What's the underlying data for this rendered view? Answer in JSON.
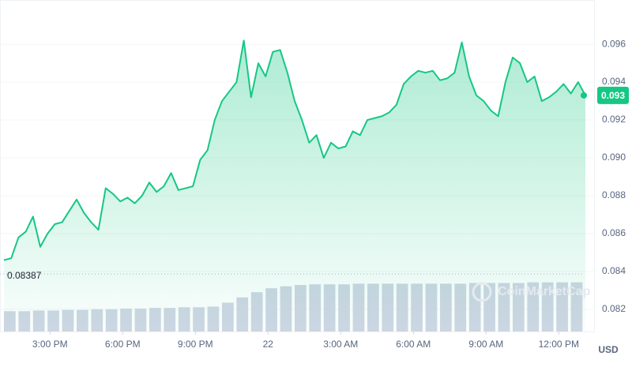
{
  "chart_data": {
    "type": "area",
    "x": [
      13.1,
      13.4,
      13.7,
      14.0,
      14.3,
      14.6,
      14.9,
      15.2,
      15.5,
      15.8,
      16.1,
      16.4,
      16.7,
      17.0,
      17.3,
      17.6,
      17.9,
      18.2,
      18.5,
      18.8,
      19.1,
      19.4,
      19.7,
      20.0,
      20.3,
      20.6,
      20.9,
      21.2,
      21.5,
      21.8,
      22.1,
      22.4,
      22.7,
      23.0,
      23.3,
      23.6,
      23.9,
      24.2,
      24.5,
      24.8,
      25.1,
      25.4,
      25.7,
      26.0,
      26.3,
      26.6,
      26.9,
      27.2,
      27.5,
      27.8,
      28.1,
      28.4,
      28.7,
      29.0,
      29.3,
      29.6,
      29.9,
      30.2,
      30.5,
      30.8,
      31.1,
      31.4,
      31.7,
      32.0,
      32.3,
      32.6,
      32.9,
      33.2,
      33.5,
      33.8,
      34.1,
      34.4,
      34.7,
      35.0,
      35.3,
      35.6,
      35.9,
      36.2,
      36.5,
      36.8,
      37.1
    ],
    "series": [
      {
        "name": "Price",
        "color": "#16c784",
        "values": [
          0.0846,
          0.0847,
          0.0858,
          0.0861,
          0.0869,
          0.0853,
          0.086,
          0.0865,
          0.0866,
          0.0872,
          0.0878,
          0.0871,
          0.0866,
          0.0862,
          0.0884,
          0.0881,
          0.0877,
          0.0879,
          0.0876,
          0.088,
          0.0887,
          0.0882,
          0.0885,
          0.0892,
          0.0883,
          0.0884,
          0.0885,
          0.0899,
          0.0904,
          0.092,
          0.093,
          0.0935,
          0.094,
          0.0962,
          0.0932,
          0.095,
          0.0943,
          0.0956,
          0.0957,
          0.0945,
          0.093,
          0.092,
          0.0908,
          0.0912,
          0.09,
          0.0908,
          0.0905,
          0.0906,
          0.0914,
          0.0912,
          0.092,
          0.0921,
          0.0922,
          0.0924,
          0.0928,
          0.0939,
          0.0943,
          0.0946,
          0.0945,
          0.0946,
          0.0941,
          0.0942,
          0.0945,
          0.0961,
          0.0943,
          0.0933,
          0.093,
          0.0925,
          0.0922,
          0.094,
          0.0953,
          0.095,
          0.094,
          0.0943,
          0.093,
          0.0932,
          0.0935,
          0.0939,
          0.0934,
          0.094,
          0.0933
        ]
      },
      {
        "name": "Volume",
        "color": "#cfd6e4",
        "axis": "y2",
        "x": [
          13.1,
          13.7,
          14.3,
          14.9,
          15.5,
          16.1,
          16.7,
          17.3,
          17.9,
          18.5,
          19.1,
          19.7,
          20.3,
          20.9,
          21.5,
          22.1,
          22.7,
          23.3,
          23.9,
          24.5,
          25.1,
          25.7,
          26.3,
          26.9,
          27.5,
          28.1,
          28.7,
          29.3,
          29.9,
          30.5,
          31.1,
          31.7,
          32.3,
          32.9,
          33.5,
          34.1,
          34.7,
          35.3,
          35.9,
          36.5
        ],
        "values": [
          31,
          31,
          32,
          32,
          33,
          33,
          34,
          34,
          35,
          35,
          36,
          36,
          37,
          37,
          38,
          44,
          52,
          60,
          66,
          69,
          71,
          72,
          72,
          72,
          73,
          73,
          73,
          73,
          73,
          73,
          73,
          73,
          74,
          74,
          74,
          74,
          75,
          75,
          75,
          75
        ]
      }
    ],
    "xlim": [
      13.1,
      37.1
    ],
    "xticks": [
      {
        "value": 15,
        "label": "3:00 PM"
      },
      {
        "value": 18,
        "label": "6:00 PM"
      },
      {
        "value": 21,
        "label": "9:00 PM"
      },
      {
        "value": 24,
        "label": "22"
      },
      {
        "value": 27,
        "label": "3:00 AM"
      },
      {
        "value": 30,
        "label": "6:00 AM"
      },
      {
        "value": 33,
        "label": "9:00 AM"
      },
      {
        "value": 36,
        "label": "12:00 PM"
      }
    ],
    "ylim": [
      0.08083,
      0.09813
    ],
    "yticks": [
      0.096,
      0.094,
      0.092,
      {
        "value": 0.09,
        "label": "0.090"
      },
      0.088,
      0.086,
      0.084,
      0.082
    ],
    "y2lim": [
      0,
      500
    ],
    "grid": true,
    "low": 0.08387,
    "current_price": 0.093,
    "currency": "USD",
    "watermark": "CoinMarketCap"
  }
}
